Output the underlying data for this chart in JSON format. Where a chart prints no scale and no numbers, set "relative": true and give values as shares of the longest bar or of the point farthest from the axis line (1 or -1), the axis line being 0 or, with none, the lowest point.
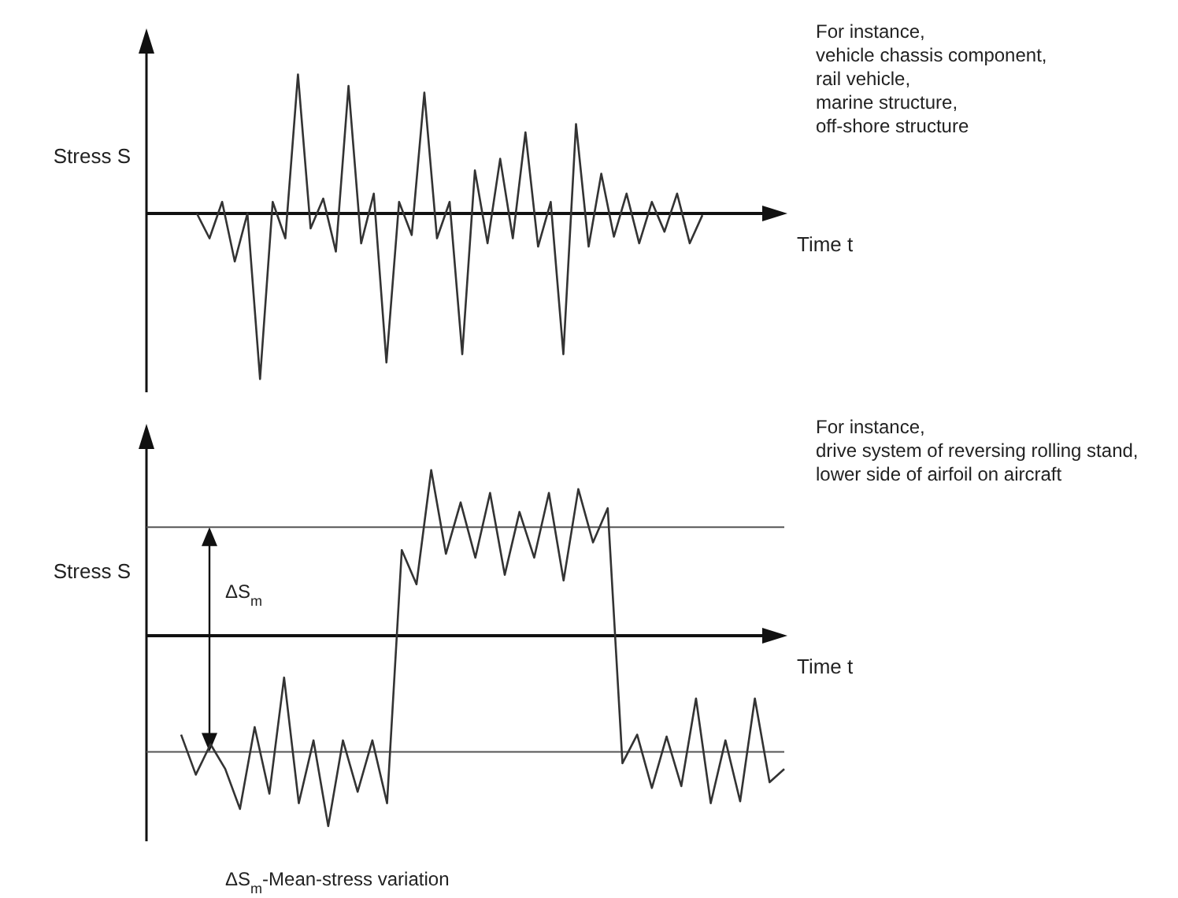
{
  "chart_data": [
    {
      "type": "line",
      "relative": true,
      "xlabel": "Time t",
      "ylabel": "Stress S",
      "categories": [
        null,
        null,
        null,
        null,
        null,
        null,
        null,
        null,
        null,
        null,
        null,
        null,
        null,
        null,
        null,
        null,
        null,
        null,
        null,
        null,
        null,
        null,
        null,
        null,
        null,
        null,
        null,
        null,
        null,
        null,
        null,
        null,
        null,
        null,
        null,
        null,
        null,
        null,
        null,
        null,
        null
      ],
      "series": [
        {
          "color": "#333333",
          "values": [
            0,
            -0.15,
            0.07,
            -0.29,
            0,
            -1,
            0.07,
            -0.15,
            0.84,
            -0.09,
            0.09,
            -0.23,
            0.77,
            -0.18,
            0.12,
            -0.9,
            0.07,
            -0.13,
            0.73,
            -0.15,
            0.07,
            -0.85,
            0.26,
            -0.18,
            0.33,
            -0.15,
            0.49,
            -0.2,
            0.07,
            -0.85,
            0.54,
            -0.2,
            0.24,
            -0.14,
            0.12,
            -0.18,
            0.07,
            -0.11,
            0.12,
            -0.18,
            -0.01
          ]
        }
      ],
      "annotations": [
        "For instance,\nvehicle chassis component,\nrail vehicle,\nmarine structure,\noff-shore structure"
      ]
    },
    {
      "type": "line",
      "relative": true,
      "xlabel": "Time t",
      "ylabel": "Stress S",
      "categories": [
        null,
        null,
        null,
        null,
        null,
        null,
        null,
        null,
        null,
        null,
        null,
        null,
        null,
        null,
        null,
        null,
        null,
        null,
        null,
        null,
        null,
        null,
        null,
        null,
        null,
        null,
        null,
        null,
        null,
        null,
        null,
        null,
        null,
        null,
        null,
        null,
        null,
        null,
        null,
        null,
        null,
        null
      ],
      "series": [
        {
          "color": "#333333",
          "values": [
            -0.52,
            -0.73,
            -0.57,
            -0.7,
            -0.91,
            -0.48,
            -0.83,
            -0.22,
            -0.88,
            -0.55,
            -1,
            -0.55,
            -0.82,
            -0.55,
            -0.88,
            0.45,
            0.27,
            0.87,
            0.43,
            0.7,
            0.41,
            0.75,
            0.32,
            0.65,
            0.41,
            0.75,
            0.29,
            0.77,
            0.49,
            0.67,
            -0.67,
            -0.52,
            -0.8,
            -0.53,
            -0.79,
            -0.33,
            -0.88,
            -0.55,
            -0.87,
            -0.33,
            -0.77,
            -0.7
          ]
        }
      ],
      "ref_lines": [
        {
          "axis": "y",
          "value": 0.57,
          "color": "#555555"
        },
        {
          "axis": "y",
          "value": -0.61,
          "color": "#555555"
        }
      ],
      "annotations": [
        "For instance,\ndrive system of reversing rolling stand,\nlower side of airfoil on aircraft",
        "ΔS$_{m}$",
        "ΔS$_{m}$-Mean-stress variation"
      ]
    }
  ]
}
